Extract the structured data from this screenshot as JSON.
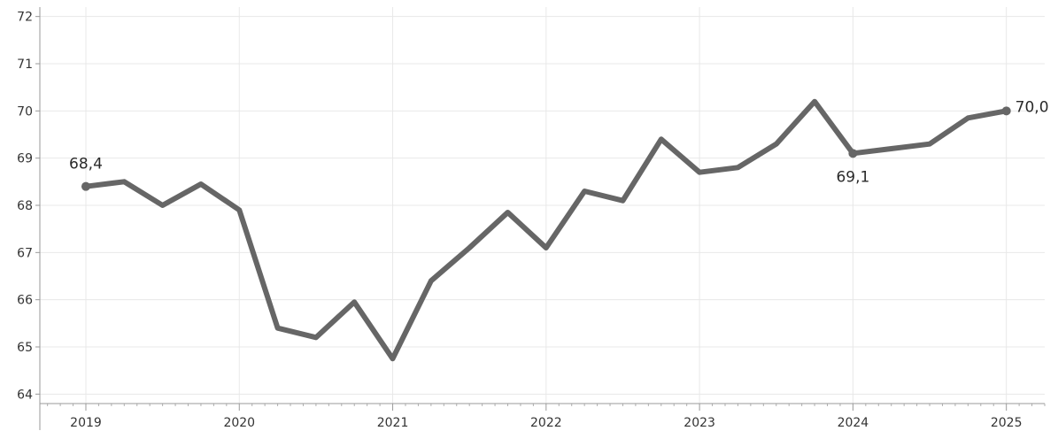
{
  "chart_data": {
    "type": "line",
    "title": "",
    "xlabel": "",
    "ylabel": "",
    "xlim": [
      2018.7,
      2025.25
    ],
    "ylim": [
      63.8,
      72.2
    ],
    "x_ticks": [
      2019,
      2020,
      2021,
      2022,
      2023,
      2024,
      2025
    ],
    "x_tick_labels": [
      "2019",
      "2020",
      "2021",
      "2022",
      "2023",
      "2024",
      "2025"
    ],
    "y_ticks": [
      64,
      65,
      66,
      67,
      68,
      69,
      70,
      71,
      72
    ],
    "y_tick_labels": [
      "64",
      "65",
      "66",
      "67",
      "68",
      "69",
      "70",
      "71",
      "72"
    ],
    "grid": true,
    "color": "#666666",
    "series": [
      {
        "x": [
          2019,
          2019.25,
          2019.5,
          2019.75,
          2020,
          2020.25,
          2020.5,
          2020.75,
          2021,
          2021.25,
          2021.5,
          2021.75,
          2022,
          2022.25,
          2022.5,
          2022.75,
          2023,
          2023.25,
          2023.5,
          2023.75,
          2024,
          2024.25,
          2024.5,
          2024.75,
          2025
        ],
        "values": [
          68.4,
          68.5,
          68.0,
          68.45,
          67.9,
          65.4,
          65.2,
          65.95,
          64.75,
          66.4,
          67.1,
          67.85,
          67.1,
          68.3,
          68.1,
          69.4,
          68.7,
          68.8,
          69.3,
          70.2,
          69.1,
          69.2,
          69.3,
          69.85,
          70.0
        ]
      }
    ],
    "annotations": [
      {
        "x": 2019,
        "y": 68.4,
        "text": "68,4",
        "position": "above"
      },
      {
        "x": 2024,
        "y": 69.1,
        "text": "69,1",
        "position": "below"
      },
      {
        "x": 2025,
        "y": 70.0,
        "text": "70,0",
        "position": "right"
      }
    ]
  }
}
